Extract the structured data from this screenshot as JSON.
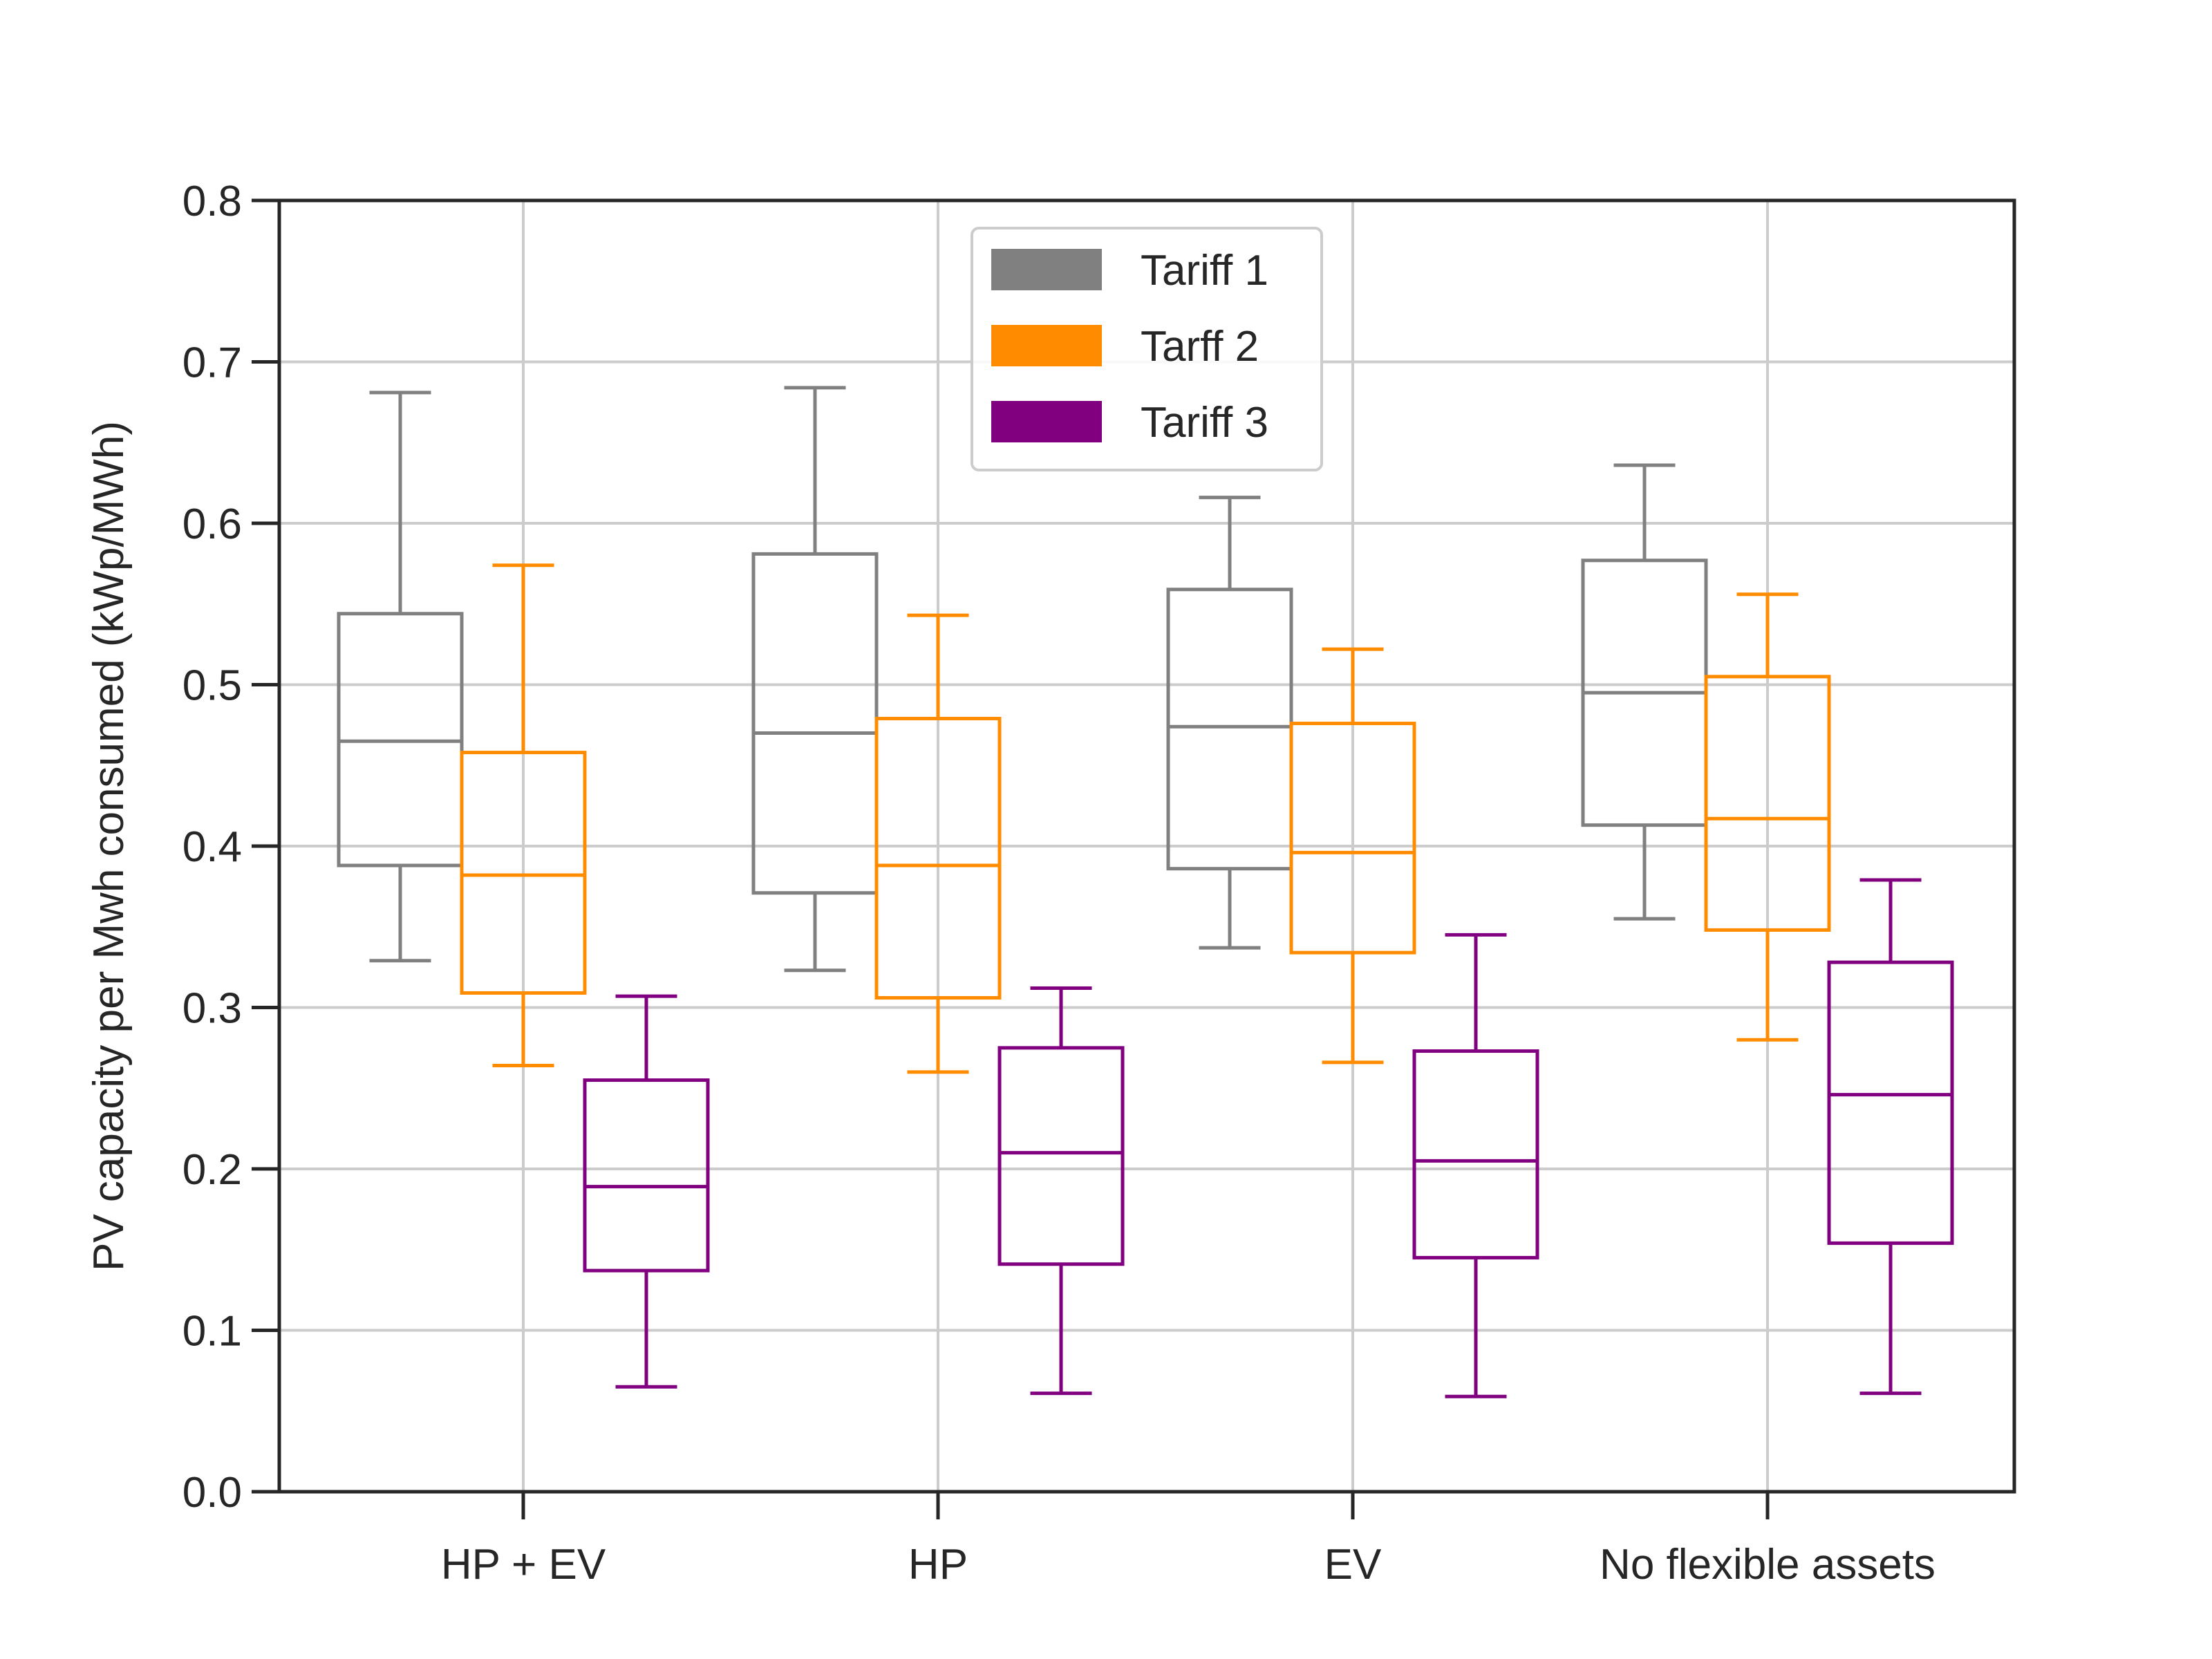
{
  "chart_data": {
    "type": "box",
    "title": "",
    "xlabel": "",
    "ylabel": "PV capacity per Mwh consumed (kWp/MWh)",
    "ylim": [
      0,
      0.8
    ],
    "yticks": [
      0.0,
      0.1,
      0.2,
      0.3,
      0.4,
      0.5,
      0.6,
      0.7,
      0.8
    ],
    "ytick_labels": [
      "0.0",
      "0.1",
      "0.2",
      "0.3",
      "0.4",
      "0.5",
      "0.6",
      "0.7",
      "0.8"
    ],
    "grid": true,
    "legend_position": "top-center",
    "categories": [
      "HP + EV",
      "HP",
      "EV",
      "No flexible assets"
    ],
    "series": [
      {
        "name": "Tariff 1",
        "color": "#808080",
        "boxes": [
          {
            "whisker_low": 0.329,
            "q1": 0.388,
            "median": 0.465,
            "q3": 0.544,
            "whisker_high": 0.681
          },
          {
            "whisker_low": 0.323,
            "q1": 0.371,
            "median": 0.47,
            "q3": 0.581,
            "whisker_high": 0.684
          },
          {
            "whisker_low": 0.337,
            "q1": 0.386,
            "median": 0.474,
            "q3": 0.559,
            "whisker_high": 0.616
          },
          {
            "whisker_low": 0.355,
            "q1": 0.413,
            "median": 0.495,
            "q3": 0.577,
            "whisker_high": 0.636
          }
        ]
      },
      {
        "name": "Tarff 2",
        "color": "#ff8c00",
        "boxes": [
          {
            "whisker_low": 0.264,
            "q1": 0.309,
            "median": 0.382,
            "q3": 0.458,
            "whisker_high": 0.574
          },
          {
            "whisker_low": 0.26,
            "q1": 0.306,
            "median": 0.388,
            "q3": 0.479,
            "whisker_high": 0.543
          },
          {
            "whisker_low": 0.266,
            "q1": 0.334,
            "median": 0.396,
            "q3": 0.476,
            "whisker_high": 0.522
          },
          {
            "whisker_low": 0.28,
            "q1": 0.348,
            "median": 0.417,
            "q3": 0.505,
            "whisker_high": 0.556
          }
        ]
      },
      {
        "name": "Tariff 3",
        "color": "#800080",
        "boxes": [
          {
            "whisker_low": 0.065,
            "q1": 0.137,
            "median": 0.189,
            "q3": 0.255,
            "whisker_high": 0.307
          },
          {
            "whisker_low": 0.061,
            "q1": 0.141,
            "median": 0.21,
            "q3": 0.275,
            "whisker_high": 0.312
          },
          {
            "whisker_low": 0.059,
            "q1": 0.145,
            "median": 0.205,
            "q3": 0.273,
            "whisker_high": 0.345
          },
          {
            "whisker_low": 0.061,
            "q1": 0.154,
            "median": 0.246,
            "q3": 0.328,
            "whisker_high": 0.379
          }
        ]
      }
    ]
  }
}
